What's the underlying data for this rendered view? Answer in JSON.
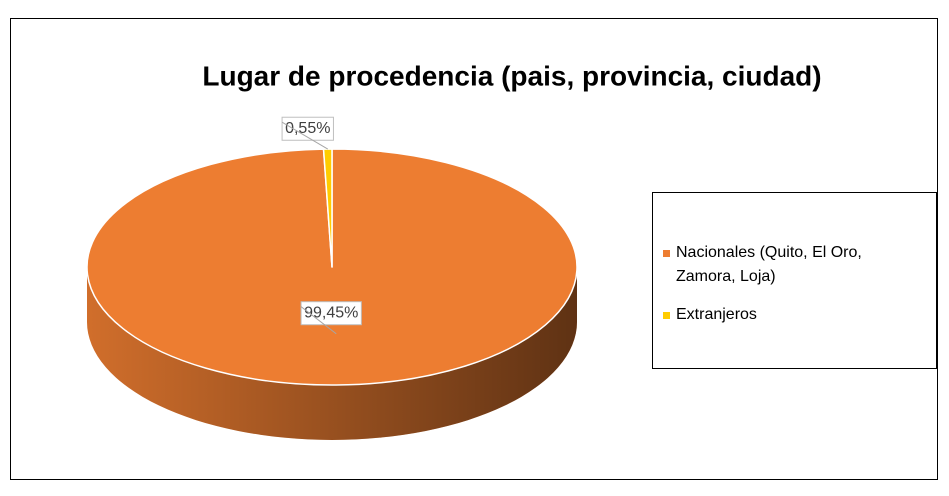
{
  "chart_data": {
    "type": "pie",
    "title": "Lugar de procedencia (pais, provincia, ciudad)",
    "categories": [
      "Nacionales (Quito, El Oro, Zamora, Loja)",
      "Extranjeros"
    ],
    "values": [
      99.45,
      0.55
    ],
    "value_labels": [
      "99,45%",
      "0,55%"
    ],
    "colors": [
      "#ed7d31",
      "#ffcc00"
    ],
    "legend": "right"
  }
}
